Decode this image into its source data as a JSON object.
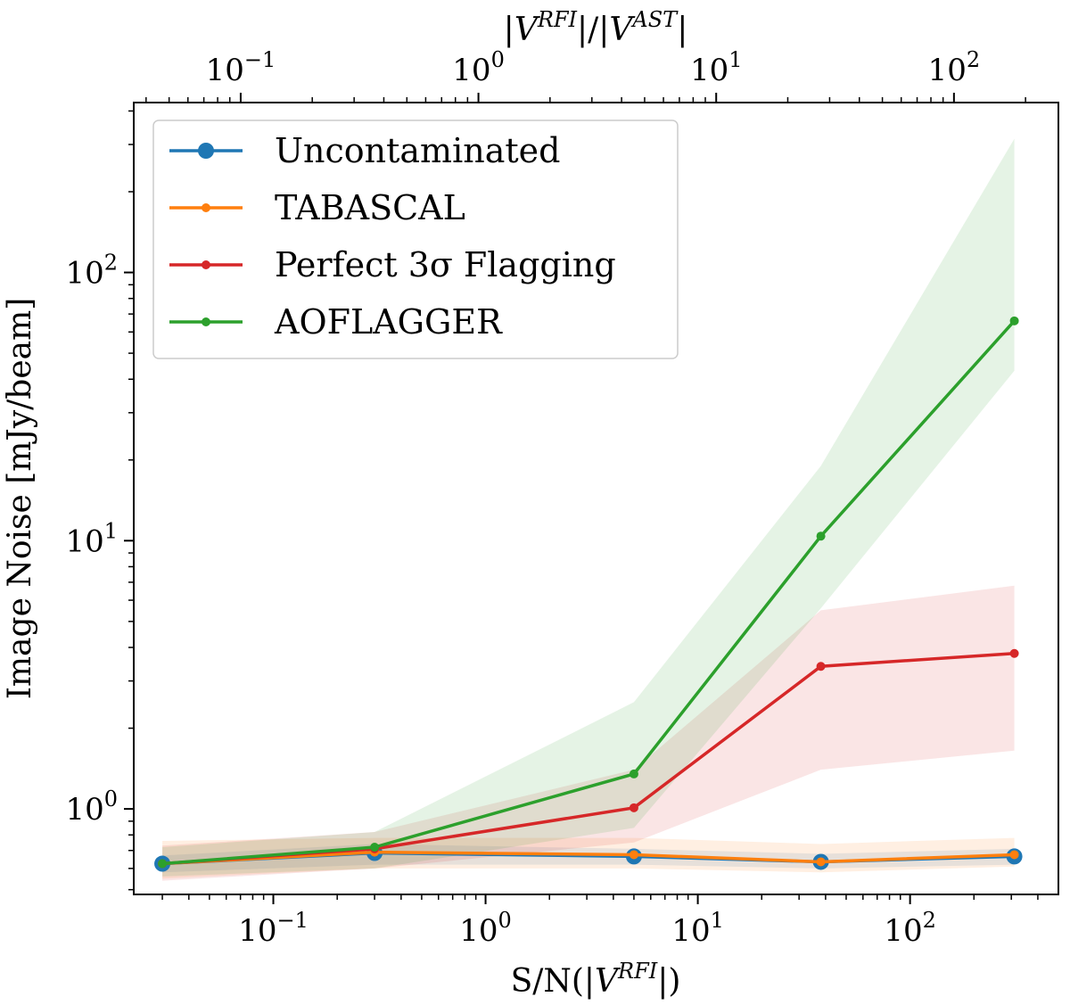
{
  "chart_data": {
    "type": "line",
    "xlabel": {
      "prefix": "S/N(|",
      "var": "V",
      "sup": "RFI",
      "suffix": "|)"
    },
    "ylabel": "Image Noise [mJy/beam]",
    "top_xlabel": {
      "p1": "|",
      "v1": "V",
      "s1": "RFI",
      "mid": "|/|",
      "v2": "V",
      "s2": "AST",
      "end": "|"
    },
    "x_scale": "log",
    "y_scale": "log",
    "xlim": [
      0.022,
      500
    ],
    "ylim": [
      0.48,
      430
    ],
    "top_xlim": [
      0.0355,
      275
    ],
    "x_ticks": [
      {
        "value": 0.1,
        "base": "10",
        "exp": "−1"
      },
      {
        "value": 1,
        "base": "10",
        "exp": "0"
      },
      {
        "value": 10,
        "base": "10",
        "exp": "1"
      },
      {
        "value": 100,
        "base": "10",
        "exp": "2"
      }
    ],
    "top_x_ticks": [
      {
        "value": 0.1,
        "base": "10",
        "exp": "−1"
      },
      {
        "value": 1,
        "base": "10",
        "exp": "0"
      },
      {
        "value": 10,
        "base": "10",
        "exp": "1"
      },
      {
        "value": 100,
        "base": "10",
        "exp": "2"
      }
    ],
    "y_ticks": [
      {
        "value": 1,
        "base": "10",
        "exp": "0"
      },
      {
        "value": 10,
        "base": "10",
        "exp": "1"
      },
      {
        "value": 100,
        "base": "10",
        "exp": "2"
      }
    ],
    "x": [
      0.03,
      0.3,
      5,
      38,
      310
    ],
    "series": [
      {
        "name": "Uncontaminated",
        "color": "#1f77b4",
        "marker": "large",
        "values": [
          0.625,
          0.685,
          0.665,
          0.635,
          0.665
        ],
        "band_low": [
          0.58,
          0.62,
          0.62,
          0.6,
          0.62
        ],
        "band_high": [
          0.67,
          0.74,
          0.71,
          0.68,
          0.71
        ]
      },
      {
        "name": "TABASCAL",
        "color": "#ff7f0e",
        "marker": "small",
        "values": [
          0.625,
          0.69,
          0.675,
          0.635,
          0.675
        ],
        "band_low": [
          0.55,
          0.6,
          0.6,
          0.58,
          0.61
        ],
        "band_high": [
          0.76,
          0.78,
          0.78,
          0.74,
          0.78
        ]
      },
      {
        "name": "Perfect 3σ Flagging",
        "color": "#d62728",
        "marker": "small",
        "values": [
          0.625,
          0.71,
          1.01,
          3.4,
          3.8
        ],
        "band_low": [
          0.54,
          0.6,
          0.75,
          1.4,
          1.65
        ],
        "band_high": [
          0.73,
          0.82,
          1.4,
          5.5,
          6.8
        ]
      },
      {
        "name": "AOFLAGGER",
        "color": "#2ca02c",
        "marker": "small",
        "values": [
          0.625,
          0.72,
          1.35,
          10.4,
          66
        ],
        "band_low": [
          0.56,
          0.6,
          0.85,
          5.6,
          43
        ],
        "band_high": [
          0.72,
          0.82,
          2.5,
          19,
          315
        ]
      }
    ],
    "legend_position": "upper-left"
  }
}
